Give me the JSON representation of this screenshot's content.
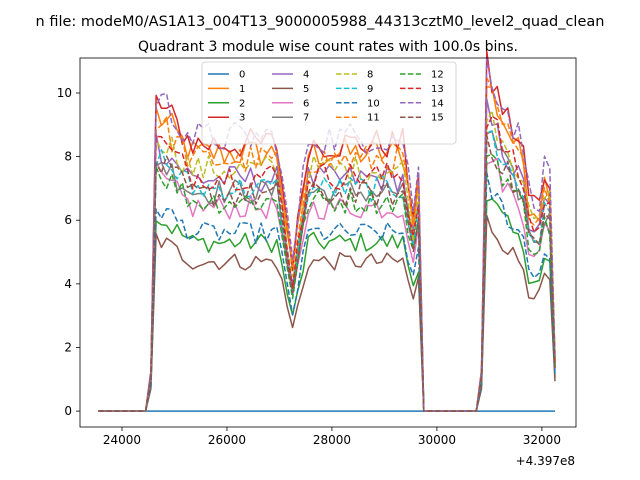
{
  "chart_data": {
    "type": "line",
    "suptitle": "n file: modeM0/AS1A13_004T13_9000005988_44313cztM0_level2_quad_clean",
    "title": "Quadrant 3 module wise count rates with 100.0s bins.",
    "xlabel": "",
    "ylabel": "",
    "x_offset_label": "+4.397e8",
    "xlim": [
      23200,
      32650
    ],
    "ylim": [
      -0.5,
      11.1
    ],
    "xticks": [
      24000,
      26000,
      28000,
      30000,
      32000
    ],
    "yticks": [
      0,
      2,
      4,
      6,
      8,
      10
    ],
    "grid": false,
    "legend_placement": "top-center",
    "legend_columns": 4,
    "bin_seconds": 100,
    "segments": [
      {
        "start": 23550,
        "end": 24450,
        "active": false
      },
      {
        "start": 24550,
        "end": 29650,
        "active": true
      },
      {
        "start": 29750,
        "end": 30750,
        "active": false
      },
      {
        "start": 30850,
        "end": 32250,
        "active": true
      }
    ],
    "series": [
      {
        "name": "0",
        "color": "#1f77b4",
        "dash": "solid",
        "level": 0.0
      },
      {
        "name": "1",
        "color": "#ff7f0e",
        "dash": "solid",
        "level": 8.1
      },
      {
        "name": "2",
        "color": "#2ca02c",
        "dash": "solid",
        "level": 5.3
      },
      {
        "name": "3",
        "color": "#d62728",
        "dash": "solid",
        "level": 8.4
      },
      {
        "name": "4",
        "color": "#9467bd",
        "dash": "solid",
        "level": 7.3
      },
      {
        "name": "5",
        "color": "#8c564b",
        "dash": "solid",
        "level": 4.7
      },
      {
        "name": "6",
        "color": "#e377c2",
        "dash": "solid",
        "level": 6.4
      },
      {
        "name": "7",
        "color": "#7f7f7f",
        "dash": "solid",
        "level": 6.9
      },
      {
        "name": "8",
        "color": "#bcbd22",
        "dash": "dashed",
        "level": 7.6
      },
      {
        "name": "9",
        "color": "#17becf",
        "dash": "dashed",
        "level": 7.0
      },
      {
        "name": "10",
        "color": "#1f77b4",
        "dash": "dashed",
        "level": 5.6
      },
      {
        "name": "11",
        "color": "#ff7f0e",
        "dash": "dashed",
        "level": 7.9
      },
      {
        "name": "12",
        "color": "#2ca02c",
        "dash": "dashed",
        "level": 6.6
      },
      {
        "name": "13",
        "color": "#d62728",
        "dash": "dashed",
        "level": 7.4
      },
      {
        "name": "14",
        "color": "#9467bd",
        "dash": "dashed",
        "level": 8.6
      },
      {
        "name": "15",
        "color": "#8c564b",
        "dash": "dashed",
        "level": 6.8
      }
    ]
  }
}
